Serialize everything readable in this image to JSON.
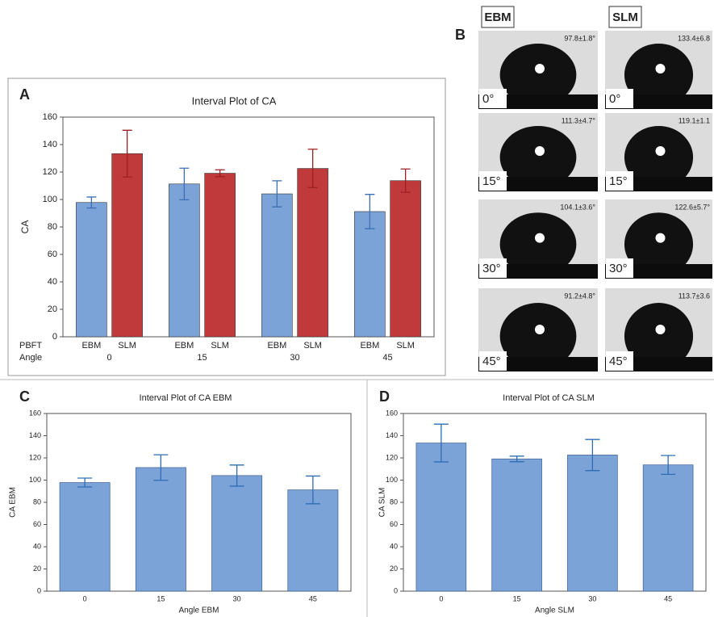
{
  "chart_data": [
    {
      "type": "bar",
      "panel": "A",
      "title": "Interval Plot of CA",
      "ylabel": "CA",
      "series_row_label": "PBFT",
      "category_row_label": "Angle",
      "categories": [
        "0",
        "15",
        "30",
        "45"
      ],
      "series": [
        {
          "name": "EBM",
          "color": "#7ba3d8",
          "error_color": "#3d6fb5",
          "values": [
            97.8,
            111.3,
            104.1,
            91.2
          ],
          "errors": [
            4,
            11.5,
            9.5,
            12.5
          ]
        },
        {
          "name": "SLM",
          "color": "#c0393b",
          "error_color": "#9c1f22",
          "values": [
            133.4,
            119.1,
            122.6,
            113.7
          ],
          "errors": [
            17,
            2.5,
            14,
            8.5
          ]
        }
      ],
      "ylim": [
        0,
        160
      ],
      "yticks": [
        0,
        20,
        40,
        60,
        80,
        100,
        120,
        140,
        160
      ]
    },
    {
      "type": "bar",
      "panel": "C",
      "title": "Interval Plot of CA EBM",
      "ylabel": "CA EBM",
      "xlabel": "Angle EBM",
      "categories": [
        "0",
        "15",
        "30",
        "45"
      ],
      "values": [
        97.8,
        111.3,
        104.1,
        91.2
      ],
      "errors": [
        4,
        11.5,
        9.5,
        12.5
      ],
      "color": "#7ba3d8",
      "error_color": "#2e6db4",
      "ylim": [
        0,
        160
      ],
      "yticks": [
        0,
        20,
        40,
        60,
        80,
        100,
        120,
        140,
        160
      ]
    },
    {
      "type": "bar",
      "panel": "D",
      "title": "Interval Plot of CA SLM",
      "ylabel": "CA SLM",
      "xlabel": "Angle SLM",
      "categories": [
        "0",
        "15",
        "30",
        "45"
      ],
      "values": [
        133.4,
        119.1,
        122.6,
        113.7
      ],
      "errors": [
        17,
        2.5,
        14,
        8.5
      ],
      "color": "#7ba3d8",
      "error_color": "#2e6db4",
      "ylim": [
        0,
        160
      ],
      "yticks": [
        0,
        20,
        40,
        60,
        80,
        100,
        120,
        140,
        160
      ]
    }
  ],
  "droplet_images": {
    "panel": "B",
    "columns": [
      {
        "title": "EBM",
        "images": [
          {
            "angle": "0°",
            "contact_angle": "97.8±1.8°"
          },
          {
            "angle": "15°",
            "contact_angle": "111.3±4.7°"
          },
          {
            "angle": "30°",
            "contact_angle": "104.1±3.6°"
          },
          {
            "angle": "45°",
            "contact_angle": "91.2±4.8°"
          }
        ]
      },
      {
        "title": "SLM",
        "images": [
          {
            "angle": "0°",
            "contact_angle": "133.4±6.8"
          },
          {
            "angle": "15°",
            "contact_angle": "119.1±1.1"
          },
          {
            "angle": "30°",
            "contact_angle": "122.6±5.7°"
          },
          {
            "angle": "45°",
            "contact_angle": "113.7±3.6"
          }
        ]
      }
    ]
  }
}
